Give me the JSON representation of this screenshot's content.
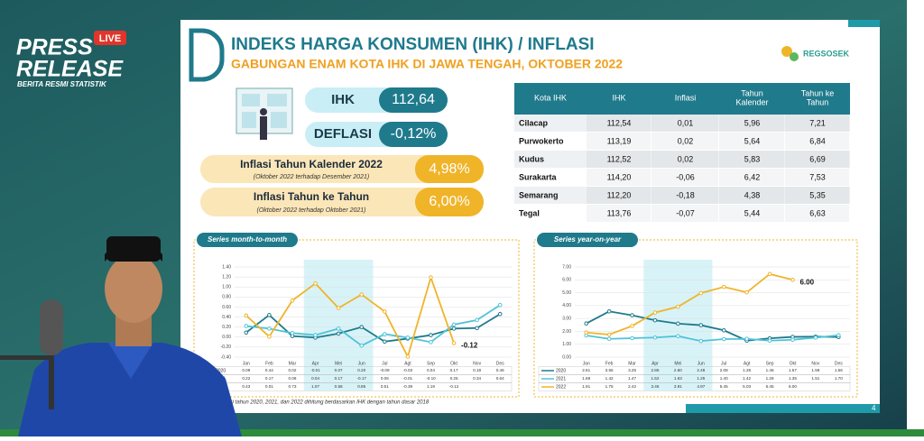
{
  "logo": {
    "line1": "PRESS",
    "line2": "RELEASE",
    "badge": "LIVE",
    "tagline": "BERITA RESMI STATISTIK"
  },
  "header": {
    "title": "INDEKS HARGA KONSUMEN (IHK) / INFLASI",
    "subtitle": "GABUNGAN ENAM KOTA IHK DI JAWA TENGAH, OKTOBER 2022",
    "brand": "REGSOSEK"
  },
  "summary": {
    "ihk": {
      "label": "IHK",
      "value": "112,64"
    },
    "deflasi": {
      "label": "DEFLASI",
      "value": "-0,12%"
    },
    "kalender": {
      "label": "Inflasi Tahun Kalender 2022",
      "note": "(Oktober 2022 terhadap Desember 2021)",
      "value": "4,98%"
    },
    "tahunan": {
      "label": "Inflasi Tahun ke Tahun",
      "note": "(Oktober 2022 terhadap Oktober 2021)",
      "value": "6,00%"
    }
  },
  "table": {
    "headers": [
      [
        "Kota IHK"
      ],
      [
        "IHK"
      ],
      [
        "Inflasi"
      ],
      [
        "Tahun",
        "Kalender"
      ],
      [
        "Tahun ke",
        "Tahun"
      ]
    ],
    "rows": [
      [
        "Cilacap",
        "112,54",
        "0,01",
        "5,96",
        "7,21"
      ],
      [
        "Purwokerto",
        "113,19",
        "0,02",
        "5,64",
        "6,84"
      ],
      [
        "Kudus",
        "112,52",
        "0,02",
        "5,83",
        "6,69"
      ],
      [
        "Surakarta",
        "114,20",
        "-0,06",
        "6,42",
        "7,53"
      ],
      [
        "Semarang",
        "112,20",
        "-0,18",
        "4,38",
        "5,35"
      ],
      [
        "Tegal",
        "113,76",
        "-0,07",
        "5,44",
        "6,63"
      ]
    ]
  },
  "charts": [
    {
      "type": "line",
      "title": "Series month-to-month",
      "categories": [
        "Jan",
        "Feb",
        "Mar",
        "Apr",
        "Mei",
        "Jun",
        "Jul",
        "Agt",
        "Sep",
        "Okt",
        "Nov",
        "Des"
      ],
      "ylim": [
        -0.4,
        1.4
      ],
      "yticks": [
        {
          "value": 1.4,
          "label": "1.40"
        },
        {
          "value": 1.2,
          "label": "1.20"
        },
        {
          "value": 1,
          "label": "1.00"
        },
        {
          "value": 0.8,
          "label": "0.80"
        },
        {
          "value": 0.6,
          "label": "0.60"
        },
        {
          "value": 0.4,
          "label": "0.40"
        },
        {
          "value": 0.2,
          "label": "0.20"
        },
        {
          "value": 0,
          "label": "0.00"
        },
        {
          "value": -0.2,
          "label": "-0.20"
        },
        {
          "value": -0.4,
          "label": "-0.40"
        }
      ],
      "series": [
        {
          "name": "2020",
          "color": "#1f7a8c",
          "values": [
            0.09,
            0.44,
            0.02,
            -0.01,
            0.07,
            0.2,
            -0.09,
            -0.03,
            0.04,
            0.17,
            0.18,
            0.46
          ],
          "value_labels": [
            "0.09",
            "0.44",
            "0.02",
            "-0.01",
            "0.07",
            "0.20",
            "-0.09",
            "-0.03",
            "0.04",
            "0.17",
            "0.18",
            "0.46"
          ]
        },
        {
          "name": "2021",
          "color": "#4fc3d9",
          "values": [
            0.22,
            0.17,
            0.08,
            0.04,
            0.17,
            -0.17,
            0.06,
            -0.01,
            -0.1,
            0.25,
            0.34,
            0.64
          ],
          "value_labels": [
            "0.22",
            "0.17",
            "0.08",
            "0.04",
            "0.17",
            "-0.17",
            "0.06",
            "-0.01",
            "-0.10",
            "0.25",
            "0.34",
            "0.64"
          ]
        },
        {
          "name": "2022",
          "color": "#f0b429",
          "values": [
            0.43,
            0.01,
            0.73,
            1.07,
            0.58,
            0.85,
            0.51,
            -0.39,
            1.19,
            -0.12,
            null,
            null
          ],
          "value_labels": [
            "0.43",
            "0.01",
            "0.73",
            "1.07",
            "0.58",
            "0.85",
            "0.51",
            "-0.39",
            "1.19",
            "-0.12",
            null,
            null
          ]
        }
      ],
      "annotation": "-0.12"
    },
    {
      "type": "line",
      "title": "Series year-on-year",
      "categories": [
        "Jan",
        "Feb",
        "Mar",
        "Apr",
        "Mei",
        "Jun",
        "Jul",
        "Agt",
        "Sep",
        "Okt",
        "Nov",
        "Des"
      ],
      "ylim": [
        0,
        7
      ],
      "yticks": [
        {
          "value": 7,
          "label": "7.00"
        },
        {
          "value": 6,
          "label": "6.00"
        },
        {
          "value": 5,
          "label": "5.00"
        },
        {
          "value": 4,
          "label": "4.00"
        },
        {
          "value": 3,
          "label": "3.00"
        },
        {
          "value": 2,
          "label": "2.00"
        },
        {
          "value": 1,
          "label": "1.00"
        },
        {
          "value": 0,
          "label": "0.00"
        }
      ],
      "series": [
        {
          "name": "2020",
          "color": "#1f7a8c",
          "values": [
            2.61,
            3.55,
            3.25,
            2.86,
            2.6,
            2.48,
            2.08,
            1.28,
            1.46,
            1.57,
            1.59,
            1.56
          ],
          "value_labels": [
            "2.61",
            "3.55",
            "3.25",
            "2.86",
            "2.60",
            "2.48",
            "2.08",
            "1.28",
            "1.46",
            "1.57",
            "1.59",
            "1.56"
          ]
        },
        {
          "name": "2021",
          "color": "#4fc3d9",
          "values": [
            1.68,
            1.42,
            1.47,
            1.52,
            1.63,
            1.25,
            1.4,
            1.42,
            1.28,
            1.35,
            1.51,
            1.7
          ],
          "value_labels": [
            "1.68",
            "1.42",
            "1.47",
            "1.52",
            "1.63",
            "1.25",
            "1.40",
            "1.42",
            "1.28",
            "1.35",
            "1.51",
            "1.70"
          ]
        },
        {
          "name": "2022",
          "color": "#f0b429",
          "values": [
            1.91,
            1.75,
            2.42,
            3.46,
            3.91,
            4.97,
            5.45,
            5.03,
            6.45,
            6,
            null,
            null
          ],
          "value_labels": [
            "1.91",
            "1.75",
            "2.42",
            "3.46",
            "3.91",
            "4.97",
            "5.45",
            "5.03",
            "6.45",
            "6.00",
            null,
            null
          ]
        }
      ],
      "annotation": "6.00"
    }
  ],
  "footnote": "Angka inflasi tahun 2020, 2021, dan 2022 dihitung berdasarkan IHK dengan tahun dasar 2018",
  "page": "4"
}
